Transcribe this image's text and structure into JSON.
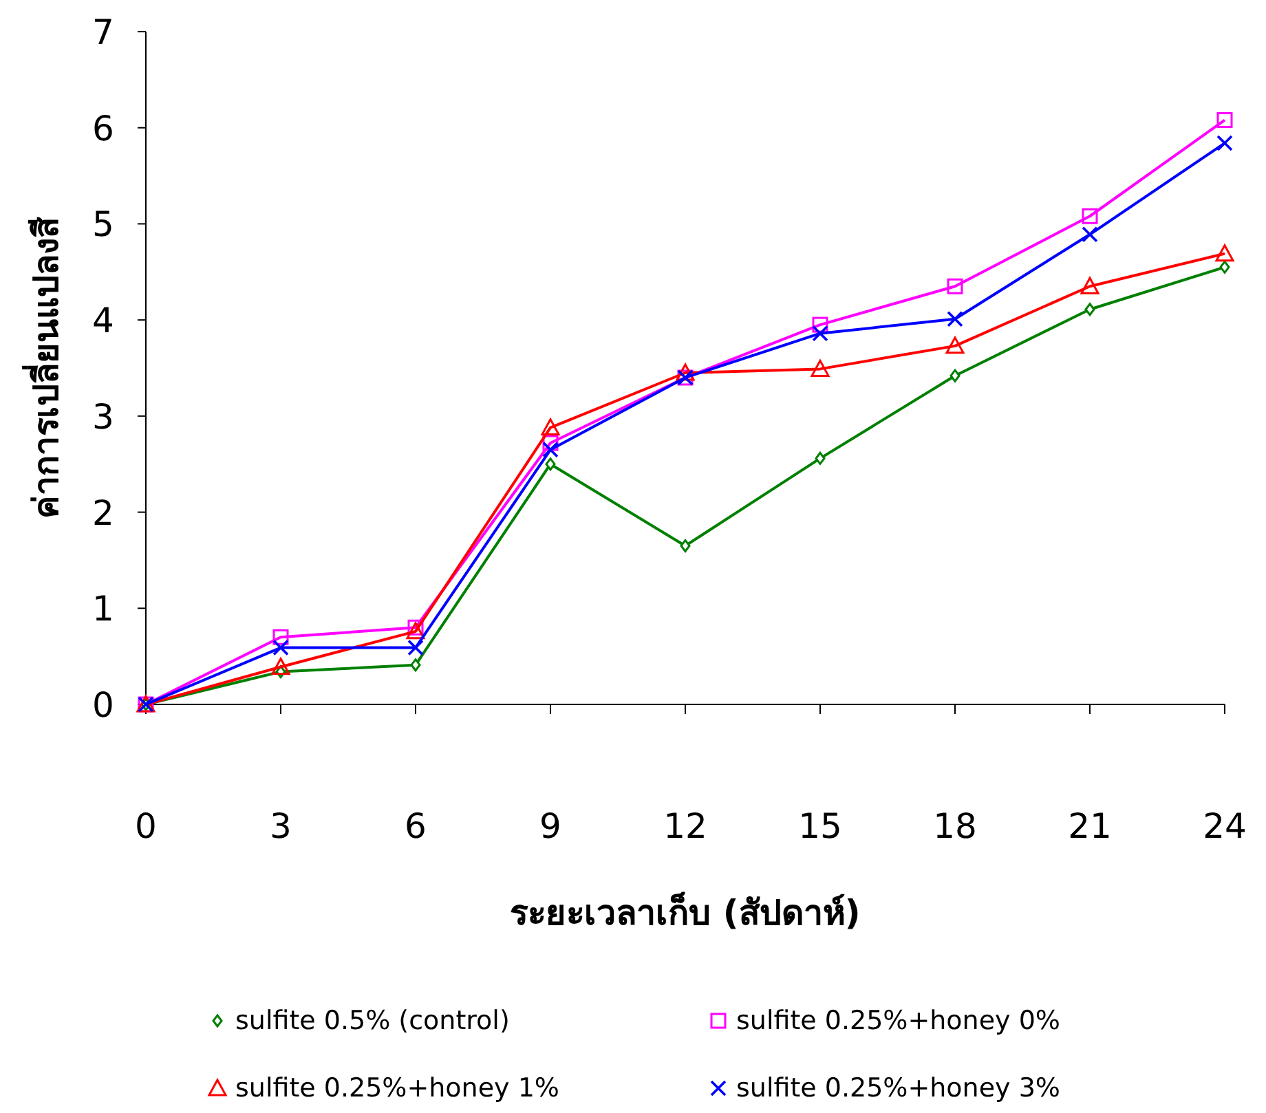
{
  "chart_data": {
    "type": "line",
    "xlabel": "ระยะเวลาเก็บ (สัปดาห์)",
    "ylabel": "ค่าการเปลี่ยนแปลงสี",
    "x": [
      0,
      3,
      6,
      9,
      12,
      15,
      18,
      21,
      24
    ],
    "xlim": [
      0,
      24
    ],
    "xticks": [
      0,
      3,
      6,
      9,
      12,
      15,
      18,
      21,
      24
    ],
    "ylim": [
      0,
      7
    ],
    "yticks": [
      0,
      1,
      2,
      3,
      4,
      5,
      6,
      7
    ],
    "grid": false,
    "legend": "bottom",
    "line_style": "solid",
    "series": [
      {
        "name": "sulfite 0.5% (control)",
        "color": "#008000",
        "marker": "diamond",
        "values": [
          0,
          0.34,
          0.41,
          2.5,
          1.65,
          2.56,
          3.42,
          4.11,
          4.55
        ]
      },
      {
        "name": "sulfite 0.25%+honey 0%",
        "color": "#ff00ff",
        "marker": "square",
        "values": [
          0,
          0.7,
          0.8,
          2.72,
          3.4,
          3.95,
          4.35,
          5.08,
          6.08
        ]
      },
      {
        "name": "sulfite 0.25%+honey 1%",
        "color": "#ff0000",
        "marker": "triangle",
        "values": [
          0,
          0.39,
          0.76,
          2.88,
          3.45,
          3.49,
          3.73,
          4.35,
          4.69
        ]
      },
      {
        "name": "sulfite 0.25%+honey 3%",
        "color": "#0000ff",
        "marker": "cross",
        "values": [
          0,
          0.59,
          0.59,
          2.65,
          3.4,
          3.86,
          4.01,
          4.89,
          5.84
        ]
      }
    ]
  }
}
